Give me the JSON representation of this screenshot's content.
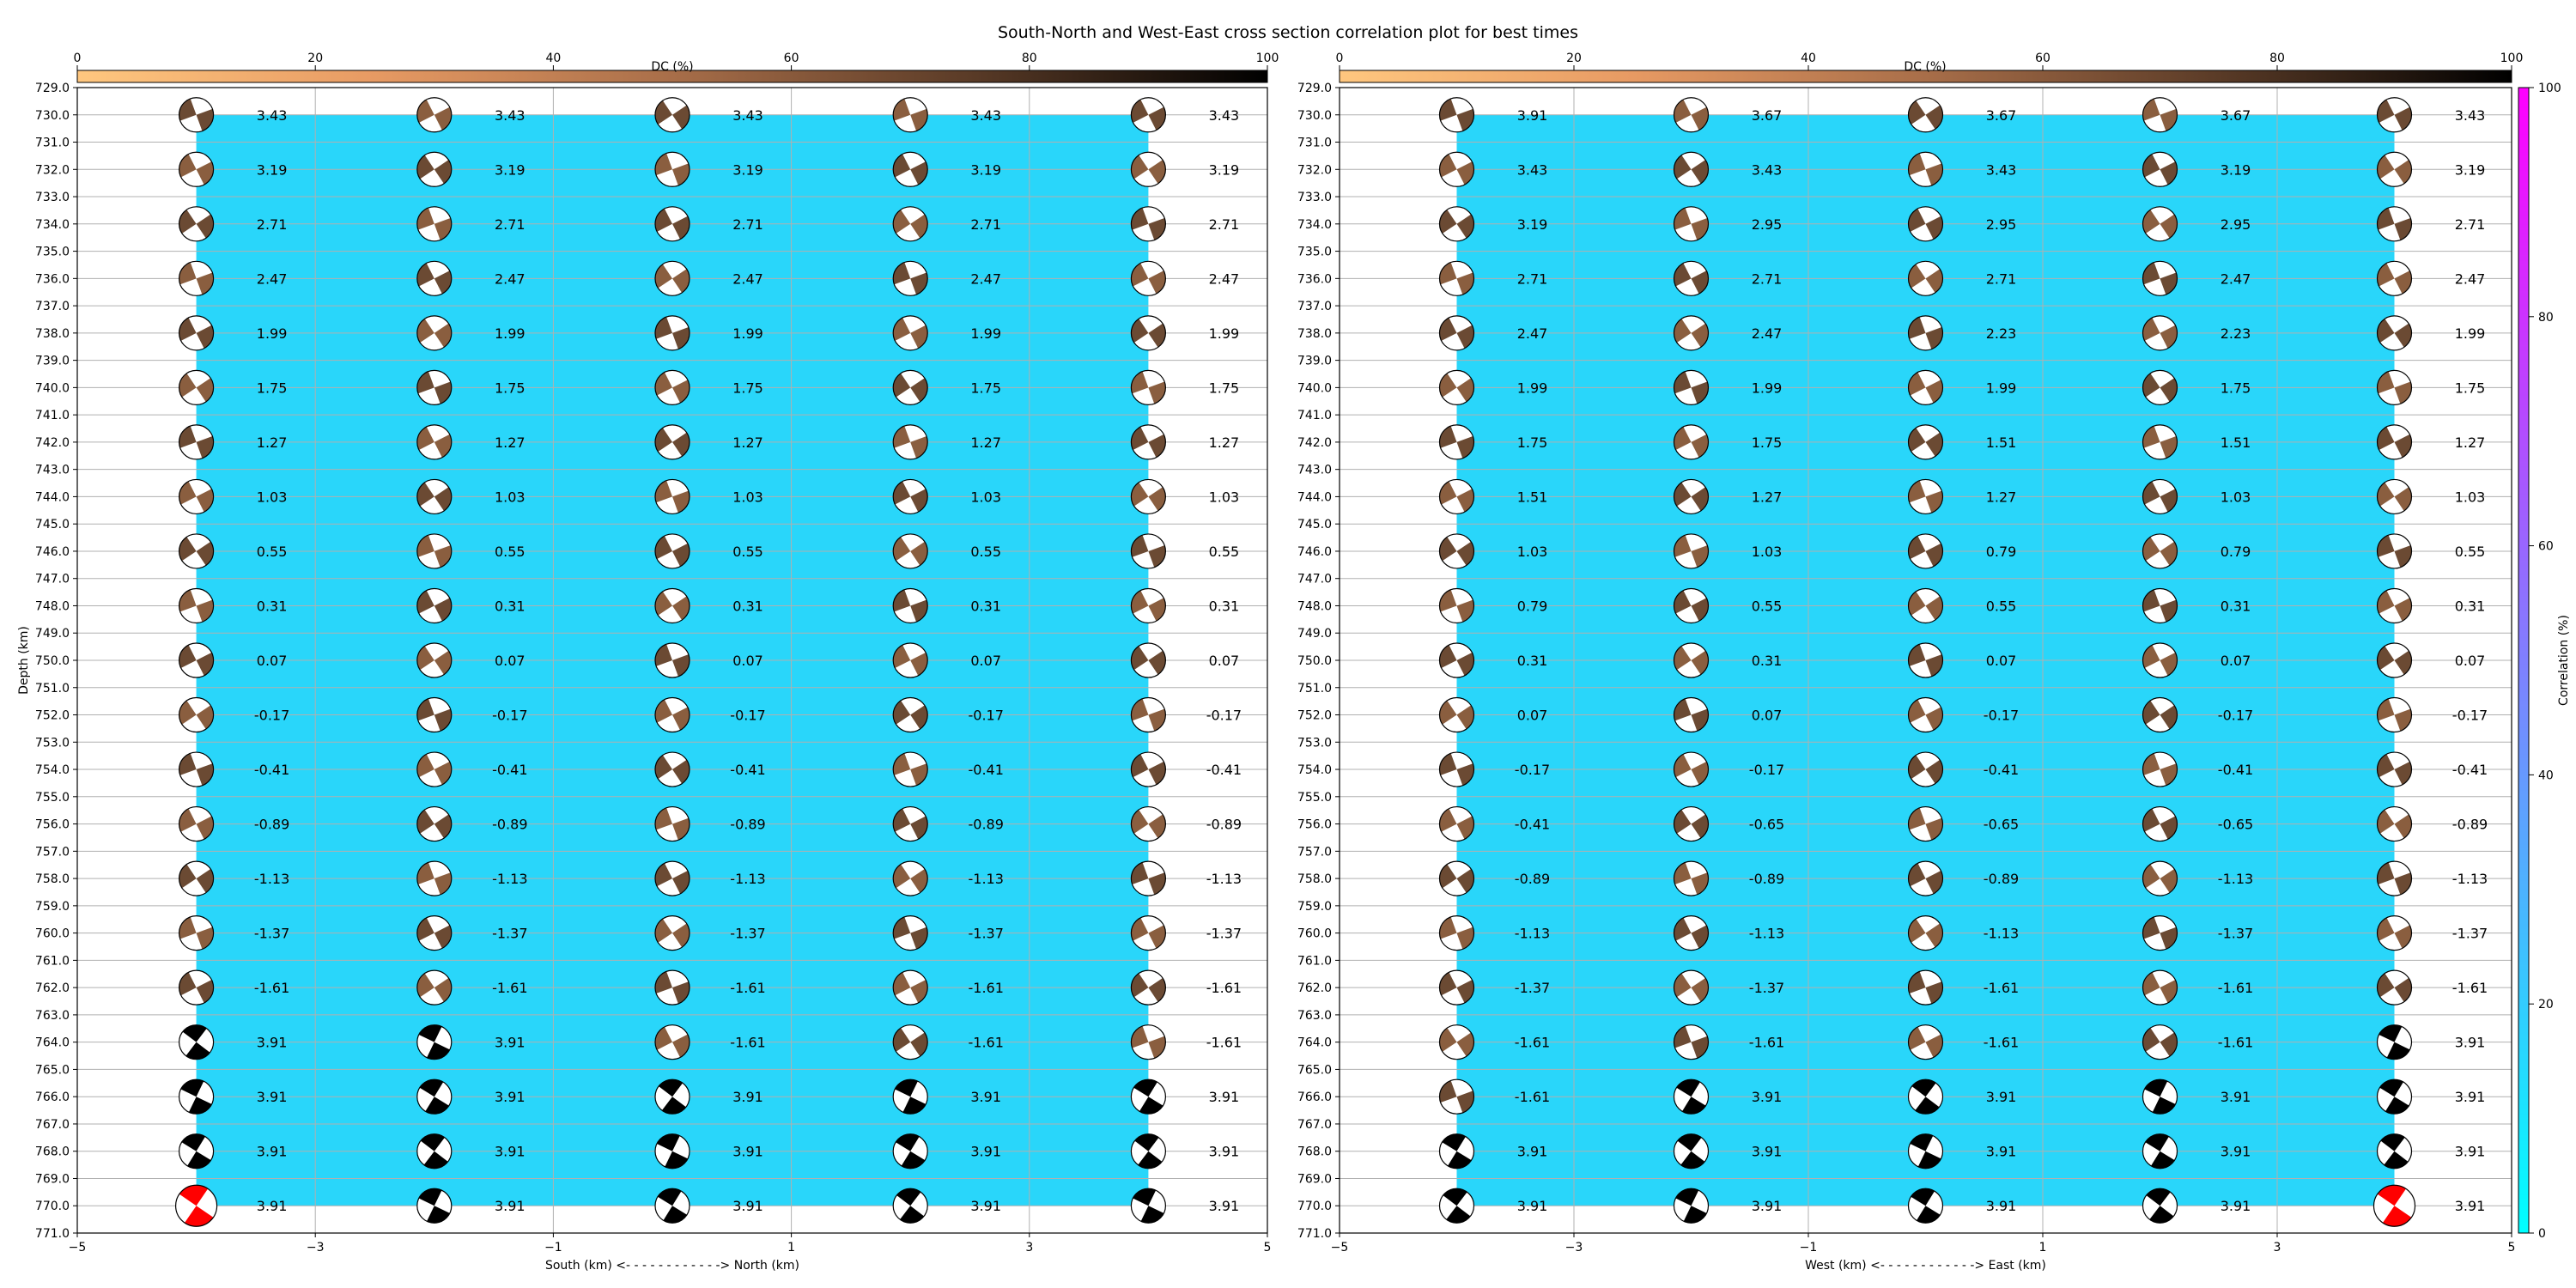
{
  "figure": {
    "title": "South-North and West-East cross section correlation plot for best times"
  },
  "colors": {
    "panel_fill": "#29d6fa",
    "grid": "#b0b0b0",
    "beach_brown": "#6b4a33",
    "beach_brown_light": "#8a5e3f",
    "beach_black": "#000000",
    "beach_red": "#ff0000"
  },
  "dc_colorbar": {
    "label": "DC (%)",
    "ticks": [
      "0",
      "20",
      "40",
      "60",
      "80",
      "100"
    ],
    "cmap": "copper_r"
  },
  "corr_colorbar": {
    "label": "Correlation (%)",
    "ticks": [
      "0",
      "20",
      "40",
      "60",
      "80",
      "100"
    ],
    "cmap": "cool"
  },
  "chart_data": [
    {
      "type": "scatter",
      "xlabel": "South (km) <- - - - - - - - - - - -> North (km)",
      "ylabel": "Depth (km)",
      "xlim": [
        -5,
        5
      ],
      "ylim": [
        771,
        729
      ],
      "xticks": [
        "−5",
        "−3",
        "−1",
        "1",
        "3",
        "5"
      ],
      "yticks": [
        "729.0",
        "730.0",
        "731.0",
        "732.0",
        "733.0",
        "734.0",
        "735.0",
        "736.0",
        "737.0",
        "738.0",
        "739.0",
        "740.0",
        "741.0",
        "742.0",
        "743.0",
        "744.0",
        "745.0",
        "746.0",
        "747.0",
        "748.0",
        "749.0",
        "750.0",
        "751.0",
        "752.0",
        "753.0",
        "754.0",
        "755.0",
        "756.0",
        "757.0",
        "758.0",
        "759.0",
        "760.0",
        "761.0",
        "762.0",
        "763.0",
        "764.0",
        "765.0",
        "766.0",
        "767.0",
        "768.0",
        "769.0",
        "770.0",
        "771.0"
      ],
      "x": [
        -4,
        -2,
        0,
        2,
        4
      ],
      "depths": [
        730,
        732,
        734,
        736,
        738,
        740,
        742,
        744,
        746,
        748,
        750,
        752,
        754,
        756,
        758,
        760,
        762,
        764,
        766,
        768,
        770
      ],
      "correlation_fill": {
        "x_range": [
          -4,
          4
        ],
        "y_range": [
          730,
          770
        ],
        "value_percent": 15
      },
      "time_labels": [
        [
          "3.43",
          "3.43",
          "3.43",
          "3.43",
          "3.43"
        ],
        [
          "3.19",
          "3.19",
          "3.19",
          "3.19",
          "3.19"
        ],
        [
          "2.71",
          "2.71",
          "2.71",
          "2.71",
          "2.71"
        ],
        [
          "2.47",
          "2.47",
          "2.47",
          "2.47",
          "2.47"
        ],
        [
          "1.99",
          "1.99",
          "1.99",
          "1.99",
          "1.99"
        ],
        [
          "1.75",
          "1.75",
          "1.75",
          "1.75",
          "1.75"
        ],
        [
          "1.27",
          "1.27",
          "1.27",
          "1.27",
          "1.27"
        ],
        [
          "1.03",
          "1.03",
          "1.03",
          "1.03",
          "1.03"
        ],
        [
          "0.55",
          "0.55",
          "0.55",
          "0.55",
          "0.55"
        ],
        [
          "0.31",
          "0.31",
          "0.31",
          "0.31",
          "0.31"
        ],
        [
          "0.07",
          "0.07",
          "0.07",
          "0.07",
          "0.07"
        ],
        [
          "-0.17",
          "-0.17",
          "-0.17",
          "-0.17",
          "-0.17"
        ],
        [
          "-0.41",
          "-0.41",
          "-0.41",
          "-0.41",
          "-0.41"
        ],
        [
          "-0.89",
          "-0.89",
          "-0.89",
          "-0.89",
          "-0.89"
        ],
        [
          "-1.13",
          "-1.13",
          "-1.13",
          "-1.13",
          "-1.13"
        ],
        [
          "-1.37",
          "-1.37",
          "-1.37",
          "-1.37",
          "-1.37"
        ],
        [
          "-1.61",
          "-1.61",
          "-1.61",
          "-1.61",
          "-1.61"
        ],
        [
          "3.91",
          "3.91",
          "-1.61",
          "-1.61",
          "-1.61"
        ],
        [
          "3.91",
          "3.91",
          "3.91",
          "3.91",
          "3.91"
        ],
        [
          "3.91",
          "3.91",
          "3.91",
          "3.91",
          "3.91"
        ],
        [
          "3.91",
          "3.91",
          "3.91",
          "3.91",
          "3.91"
        ]
      ],
      "beachball_colors": [
        [
          "brown",
          "brown",
          "brown",
          "brown",
          "brown"
        ],
        [
          "brown",
          "brown",
          "brown",
          "brown",
          "brown"
        ],
        [
          "brown",
          "brown",
          "brown",
          "brown",
          "brown"
        ],
        [
          "brown",
          "brown",
          "brown",
          "brown",
          "brown"
        ],
        [
          "brown",
          "brown",
          "brown",
          "brown",
          "brown"
        ],
        [
          "brown",
          "brown",
          "brown",
          "brown",
          "brown"
        ],
        [
          "brown",
          "brown",
          "brown",
          "brown",
          "brown"
        ],
        [
          "brown",
          "brown",
          "brown",
          "brown",
          "brown"
        ],
        [
          "brown",
          "brown",
          "brown",
          "brown",
          "brown"
        ],
        [
          "brown",
          "brown",
          "brown",
          "brown",
          "brown"
        ],
        [
          "brown",
          "brown",
          "brown",
          "brown",
          "brown"
        ],
        [
          "brown",
          "brown",
          "brown",
          "brown",
          "brown"
        ],
        [
          "brown",
          "brown",
          "brown",
          "brown",
          "brown"
        ],
        [
          "brown",
          "brown",
          "brown",
          "brown",
          "brown"
        ],
        [
          "brown",
          "brown",
          "brown",
          "brown",
          "brown"
        ],
        [
          "brown",
          "brown",
          "brown",
          "brown",
          "brown"
        ],
        [
          "brown",
          "brown",
          "brown",
          "brown",
          "brown"
        ],
        [
          "black",
          "black",
          "brown",
          "brown",
          "brown"
        ],
        [
          "black",
          "black",
          "black",
          "black",
          "black"
        ],
        [
          "black",
          "black",
          "black",
          "black",
          "black"
        ],
        [
          "red",
          "black",
          "black",
          "black",
          "black"
        ]
      ]
    },
    {
      "type": "scatter",
      "xlabel": "West (km) <- - - - - - - - - - - -> East (km)",
      "ylabel": "",
      "xlim": [
        -5,
        5
      ],
      "ylim": [
        771,
        729
      ],
      "xticks": [
        "−5",
        "−3",
        "−1",
        "1",
        "3",
        "5"
      ],
      "yticks": [
        "729.0",
        "730.0",
        "731.0",
        "732.0",
        "733.0",
        "734.0",
        "735.0",
        "736.0",
        "737.0",
        "738.0",
        "739.0",
        "740.0",
        "741.0",
        "742.0",
        "743.0",
        "744.0",
        "745.0",
        "746.0",
        "747.0",
        "748.0",
        "749.0",
        "750.0",
        "751.0",
        "752.0",
        "753.0",
        "754.0",
        "755.0",
        "756.0",
        "757.0",
        "758.0",
        "759.0",
        "760.0",
        "761.0",
        "762.0",
        "763.0",
        "764.0",
        "765.0",
        "766.0",
        "767.0",
        "768.0",
        "769.0",
        "770.0",
        "771.0"
      ],
      "x": [
        -4,
        -2,
        0,
        2,
        4
      ],
      "depths": [
        730,
        732,
        734,
        736,
        738,
        740,
        742,
        744,
        746,
        748,
        750,
        752,
        754,
        756,
        758,
        760,
        762,
        764,
        766,
        768,
        770
      ],
      "correlation_fill": {
        "x_range": [
          -4,
          4
        ],
        "y_range": [
          730,
          770
        ],
        "value_percent": 15
      },
      "time_labels": [
        [
          "3.91",
          "3.67",
          "3.67",
          "3.67",
          "3.43"
        ],
        [
          "3.43",
          "3.43",
          "3.43",
          "3.19",
          "3.19"
        ],
        [
          "3.19",
          "2.95",
          "2.95",
          "2.95",
          "2.71"
        ],
        [
          "2.71",
          "2.71",
          "2.71",
          "2.47",
          "2.47"
        ],
        [
          "2.47",
          "2.47",
          "2.23",
          "2.23",
          "1.99"
        ],
        [
          "1.99",
          "1.99",
          "1.99",
          "1.75",
          "1.75"
        ],
        [
          "1.75",
          "1.75",
          "1.51",
          "1.51",
          "1.27"
        ],
        [
          "1.51",
          "1.27",
          "1.27",
          "1.03",
          "1.03"
        ],
        [
          "1.03",
          "1.03",
          "0.79",
          "0.79",
          "0.55"
        ],
        [
          "0.79",
          "0.55",
          "0.55",
          "0.31",
          "0.31"
        ],
        [
          "0.31",
          "0.31",
          "0.07",
          "0.07",
          "0.07"
        ],
        [
          "0.07",
          "0.07",
          "-0.17",
          "-0.17",
          "-0.17"
        ],
        [
          "-0.17",
          "-0.17",
          "-0.41",
          "-0.41",
          "-0.41"
        ],
        [
          "-0.41",
          "-0.65",
          "-0.65",
          "-0.65",
          "-0.89"
        ],
        [
          "-0.89",
          "-0.89",
          "-0.89",
          "-1.13",
          "-1.13"
        ],
        [
          "-1.13",
          "-1.13",
          "-1.13",
          "-1.37",
          "-1.37"
        ],
        [
          "-1.37",
          "-1.37",
          "-1.61",
          "-1.61",
          "-1.61"
        ],
        [
          "-1.61",
          "-1.61",
          "-1.61",
          "-1.61",
          "3.91"
        ],
        [
          "-1.61",
          "3.91",
          "3.91",
          "3.91",
          "3.91"
        ],
        [
          "3.91",
          "3.91",
          "3.91",
          "3.91",
          "3.91"
        ],
        [
          "3.91",
          "3.91",
          "3.91",
          "3.91",
          "3.91"
        ]
      ],
      "beachball_colors": [
        [
          "brown",
          "brown",
          "brown",
          "brown",
          "brown"
        ],
        [
          "brown",
          "brown",
          "brown",
          "brown",
          "brown"
        ],
        [
          "brown",
          "brown",
          "brown",
          "brown",
          "brown"
        ],
        [
          "brown",
          "brown",
          "brown",
          "brown",
          "brown"
        ],
        [
          "brown",
          "brown",
          "brown",
          "brown",
          "brown"
        ],
        [
          "brown",
          "brown",
          "brown",
          "brown",
          "brown"
        ],
        [
          "brown",
          "brown",
          "brown",
          "brown",
          "brown"
        ],
        [
          "brown",
          "brown",
          "brown",
          "brown",
          "brown"
        ],
        [
          "brown",
          "brown",
          "brown",
          "brown",
          "brown"
        ],
        [
          "brown",
          "brown",
          "brown",
          "brown",
          "brown"
        ],
        [
          "brown",
          "brown",
          "brown",
          "brown",
          "brown"
        ],
        [
          "brown",
          "brown",
          "brown",
          "brown",
          "brown"
        ],
        [
          "brown",
          "brown",
          "brown",
          "brown",
          "brown"
        ],
        [
          "brown",
          "brown",
          "brown",
          "brown",
          "brown"
        ],
        [
          "brown",
          "brown",
          "brown",
          "brown",
          "brown"
        ],
        [
          "brown",
          "brown",
          "brown",
          "brown",
          "brown"
        ],
        [
          "brown",
          "brown",
          "brown",
          "brown",
          "brown"
        ],
        [
          "brown",
          "brown",
          "brown",
          "brown",
          "black"
        ],
        [
          "brown",
          "black",
          "black",
          "black",
          "black"
        ],
        [
          "black",
          "black",
          "black",
          "black",
          "black"
        ],
        [
          "black",
          "black",
          "black",
          "black",
          "red"
        ]
      ]
    }
  ]
}
